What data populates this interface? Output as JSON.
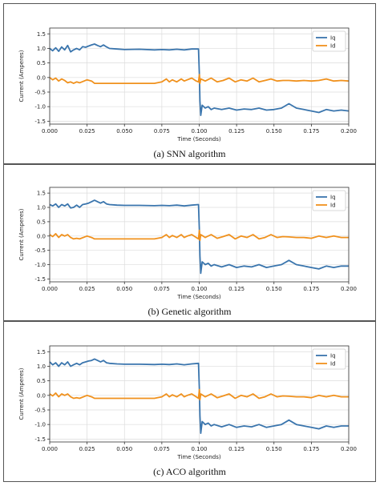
{
  "chart_data": [
    {
      "type": "line",
      "caption": "(a) SNN algorithm",
      "xlabel": "Time (Seconds)",
      "ylabel": "Current (Amperes)",
      "xlim": [
        0,
        0.2
      ],
      "ylim": [
        -1.6,
        1.7
      ],
      "xticks": [
        "0.000",
        "0.025",
        "0.050",
        "0.075",
        "0.100",
        "0.125",
        "0.150",
        "0.175",
        "0.200"
      ],
      "yticks": [
        "1.5",
        "1.0",
        "0.5",
        "0.0",
        "-0.5",
        "-1.0",
        "-1.5"
      ],
      "grid": true,
      "legend": "top-right",
      "series": [
        {
          "name": "Iq",
          "color": "#3a75ad",
          "x": [
            0,
            0.002,
            0.004,
            0.006,
            0.008,
            0.01,
            0.012,
            0.014,
            0.016,
            0.018,
            0.02,
            0.022,
            0.024,
            0.026,
            0.028,
            0.03,
            0.032,
            0.034,
            0.036,
            0.038,
            0.04,
            0.045,
            0.05,
            0.06,
            0.07,
            0.075,
            0.08,
            0.085,
            0.09,
            0.095,
            0.0995,
            0.1001,
            0.1005,
            0.101,
            0.102,
            0.104,
            0.106,
            0.108,
            0.11,
            0.115,
            0.12,
            0.125,
            0.13,
            0.135,
            0.14,
            0.145,
            0.15,
            0.155,
            0.16,
            0.165,
            0.17,
            0.175,
            0.18,
            0.185,
            0.19,
            0.195,
            0.2
          ],
          "y": [
            1.0,
            0.92,
            1.02,
            0.9,
            1.05,
            0.95,
            1.1,
            0.88,
            0.95,
            1.0,
            0.95,
            1.06,
            1.04,
            1.08,
            1.12,
            1.15,
            1.1,
            1.06,
            1.12,
            1.05,
            1.0,
            0.98,
            0.96,
            0.97,
            0.95,
            0.96,
            0.95,
            0.97,
            0.95,
            0.98,
            0.98,
            0.1,
            -0.8,
            -1.3,
            -0.95,
            -1.05,
            -1.0,
            -1.1,
            -1.05,
            -1.1,
            -1.05,
            -1.12,
            -1.08,
            -1.1,
            -1.05,
            -1.12,
            -1.1,
            -1.05,
            -0.9,
            -1.05,
            -1.1,
            -1.15,
            -1.2,
            -1.1,
            -1.15,
            -1.12,
            -1.15
          ]
        },
        {
          "name": "Id",
          "color": "#f0911d",
          "x": [
            0,
            0.002,
            0.004,
            0.006,
            0.008,
            0.01,
            0.012,
            0.014,
            0.016,
            0.018,
            0.02,
            0.025,
            0.028,
            0.03,
            0.035,
            0.04,
            0.05,
            0.06,
            0.07,
            0.075,
            0.078,
            0.08,
            0.082,
            0.085,
            0.088,
            0.09,
            0.092,
            0.095,
            0.098,
            0.0995,
            0.1001,
            0.1005,
            0.101,
            0.104,
            0.108,
            0.112,
            0.116,
            0.12,
            0.124,
            0.128,
            0.132,
            0.136,
            0.14,
            0.144,
            0.148,
            0.152,
            0.156,
            0.16,
            0.165,
            0.17,
            0.175,
            0.18,
            0.185,
            0.19,
            0.195,
            0.2
          ],
          "y": [
            0.0,
            -0.08,
            -0.02,
            -0.12,
            -0.05,
            -0.1,
            -0.18,
            -0.15,
            -0.2,
            -0.15,
            -0.18,
            -0.08,
            -0.12,
            -0.2,
            -0.2,
            -0.2,
            -0.2,
            -0.2,
            -0.2,
            -0.15,
            -0.05,
            -0.15,
            -0.08,
            -0.15,
            -0.05,
            -0.12,
            -0.08,
            -0.02,
            -0.12,
            -0.15,
            0.1,
            -0.2,
            -0.05,
            -0.12,
            -0.02,
            -0.15,
            -0.1,
            -0.02,
            -0.15,
            -0.08,
            -0.12,
            -0.02,
            -0.15,
            -0.1,
            -0.05,
            -0.12,
            -0.1,
            -0.1,
            -0.12,
            -0.1,
            -0.12,
            -0.1,
            -0.05,
            -0.12,
            -0.1,
            -0.12
          ]
        }
      ]
    },
    {
      "type": "line",
      "caption": "(b) Genetic algorithm",
      "xlabel": "Time (Seconds)",
      "ylabel": "Current (Amperes)",
      "xlim": [
        0,
        0.2
      ],
      "ylim": [
        -1.6,
        1.7
      ],
      "xticks": [
        "0.000",
        "0.025",
        "0.050",
        "0.075",
        "0.100",
        "0.125",
        "0.150",
        "0.175",
        "0.200"
      ],
      "yticks": [
        "1.5",
        "1.0",
        "0.5",
        "0.0",
        "-0.5",
        "-1.0",
        "-1.5"
      ],
      "grid": true,
      "legend": "top-right",
      "series": [
        {
          "name": "Iq",
          "color": "#3a75ad",
          "x": [
            0,
            0.002,
            0.004,
            0.006,
            0.008,
            0.01,
            0.012,
            0.014,
            0.016,
            0.018,
            0.02,
            0.022,
            0.024,
            0.026,
            0.028,
            0.03,
            0.032,
            0.034,
            0.036,
            0.038,
            0.04,
            0.045,
            0.05,
            0.06,
            0.07,
            0.075,
            0.08,
            0.085,
            0.09,
            0.095,
            0.0995,
            0.1001,
            0.1005,
            0.101,
            0.102,
            0.104,
            0.106,
            0.108,
            0.11,
            0.115,
            0.12,
            0.125,
            0.13,
            0.135,
            0.14,
            0.145,
            0.15,
            0.155,
            0.16,
            0.165,
            0.17,
            0.175,
            0.18,
            0.185,
            0.19,
            0.195,
            0.2
          ],
          "y": [
            1.1,
            1.05,
            1.12,
            1.0,
            1.1,
            1.05,
            1.12,
            0.98,
            1.0,
            1.08,
            1.0,
            1.1,
            1.12,
            1.15,
            1.2,
            1.25,
            1.2,
            1.15,
            1.2,
            1.12,
            1.1,
            1.08,
            1.07,
            1.07,
            1.06,
            1.07,
            1.06,
            1.08,
            1.05,
            1.08,
            1.1,
            0.2,
            -0.7,
            -1.3,
            -0.9,
            -1.0,
            -0.95,
            -1.05,
            -1.0,
            -1.08,
            -1.0,
            -1.1,
            -1.05,
            -1.08,
            -1.0,
            -1.1,
            -1.05,
            -1.0,
            -0.85,
            -1.0,
            -1.05,
            -1.1,
            -1.15,
            -1.05,
            -1.1,
            -1.05,
            -1.05
          ]
        },
        {
          "name": "Id",
          "color": "#f0911d",
          "x": [
            0,
            0.002,
            0.004,
            0.006,
            0.008,
            0.01,
            0.012,
            0.014,
            0.016,
            0.018,
            0.02,
            0.025,
            0.028,
            0.03,
            0.035,
            0.04,
            0.05,
            0.06,
            0.07,
            0.075,
            0.078,
            0.08,
            0.082,
            0.085,
            0.088,
            0.09,
            0.092,
            0.095,
            0.098,
            0.0995,
            0.1001,
            0.1005,
            0.101,
            0.104,
            0.108,
            0.112,
            0.116,
            0.12,
            0.124,
            0.128,
            0.132,
            0.136,
            0.14,
            0.144,
            0.148,
            0.152,
            0.156,
            0.16,
            0.165,
            0.17,
            0.175,
            0.18,
            0.185,
            0.19,
            0.195,
            0.2
          ],
          "y": [
            0.05,
            -0.02,
            0.08,
            -0.05,
            0.05,
            0.0,
            0.05,
            -0.05,
            -0.1,
            -0.08,
            -0.1,
            0.0,
            -0.05,
            -0.1,
            -0.1,
            -0.1,
            -0.1,
            -0.1,
            -0.1,
            -0.05,
            0.05,
            -0.05,
            0.02,
            -0.05,
            0.05,
            -0.05,
            0.0,
            0.05,
            -0.05,
            -0.1,
            0.2,
            -0.15,
            0.05,
            -0.05,
            0.05,
            -0.08,
            -0.02,
            0.05,
            -0.1,
            0.0,
            -0.05,
            0.05,
            -0.1,
            -0.05,
            0.05,
            -0.05,
            -0.02,
            -0.03,
            -0.05,
            -0.05,
            -0.08,
            0.0,
            -0.05,
            0.0,
            -0.05,
            -0.05
          ]
        }
      ]
    },
    {
      "type": "line",
      "caption": "(c) ACO algorithm",
      "xlabel": "Time (Seconds)",
      "ylabel": "Current (Amperes)",
      "xlim": [
        0,
        0.2
      ],
      "ylim": [
        -1.6,
        1.7
      ],
      "xticks": [
        "0.000",
        "0.025",
        "0.050",
        "0.075",
        "0.100",
        "0.125",
        "0.150",
        "0.175",
        "0.200"
      ],
      "yticks": [
        "1.5",
        "1.0",
        "0.5",
        "0.0",
        "-0.5",
        "-1.0",
        "-1.5"
      ],
      "grid": true,
      "legend": "top-right",
      "series": [
        {
          "name": "Iq",
          "color": "#3a75ad",
          "x": [
            0,
            0.002,
            0.004,
            0.006,
            0.008,
            0.01,
            0.012,
            0.014,
            0.016,
            0.018,
            0.02,
            0.022,
            0.024,
            0.026,
            0.028,
            0.03,
            0.032,
            0.034,
            0.036,
            0.038,
            0.04,
            0.045,
            0.05,
            0.06,
            0.07,
            0.075,
            0.08,
            0.085,
            0.09,
            0.095,
            0.0995,
            0.1001,
            0.1005,
            0.101,
            0.102,
            0.104,
            0.106,
            0.108,
            0.11,
            0.115,
            0.12,
            0.125,
            0.13,
            0.135,
            0.14,
            0.145,
            0.15,
            0.155,
            0.16,
            0.165,
            0.17,
            0.175,
            0.18,
            0.185,
            0.19,
            0.195,
            0.2
          ],
          "y": [
            1.15,
            1.05,
            1.12,
            1.0,
            1.12,
            1.05,
            1.15,
            1.0,
            1.05,
            1.1,
            1.05,
            1.12,
            1.15,
            1.18,
            1.2,
            1.25,
            1.2,
            1.15,
            1.2,
            1.12,
            1.1,
            1.08,
            1.07,
            1.07,
            1.06,
            1.07,
            1.06,
            1.08,
            1.05,
            1.08,
            1.1,
            0.2,
            -0.7,
            -1.3,
            -0.9,
            -1.0,
            -0.95,
            -1.05,
            -1.0,
            -1.08,
            -1.0,
            -1.1,
            -1.05,
            -1.08,
            -1.0,
            -1.1,
            -1.05,
            -1.0,
            -0.85,
            -1.0,
            -1.05,
            -1.1,
            -1.15,
            -1.05,
            -1.1,
            -1.05,
            -1.05
          ]
        },
        {
          "name": "Id",
          "color": "#f0911d",
          "x": [
            0,
            0.002,
            0.004,
            0.006,
            0.008,
            0.01,
            0.012,
            0.014,
            0.016,
            0.018,
            0.02,
            0.025,
            0.028,
            0.03,
            0.035,
            0.04,
            0.05,
            0.06,
            0.07,
            0.075,
            0.078,
            0.08,
            0.082,
            0.085,
            0.088,
            0.09,
            0.092,
            0.095,
            0.098,
            0.0995,
            0.1001,
            0.1005,
            0.101,
            0.104,
            0.108,
            0.112,
            0.116,
            0.12,
            0.124,
            0.128,
            0.132,
            0.136,
            0.14,
            0.144,
            0.148,
            0.152,
            0.156,
            0.16,
            0.165,
            0.17,
            0.175,
            0.18,
            0.185,
            0.19,
            0.195,
            0.2
          ],
          "y": [
            0.05,
            -0.02,
            0.08,
            -0.05,
            0.05,
            0.0,
            0.05,
            -0.05,
            -0.1,
            -0.08,
            -0.1,
            0.0,
            -0.05,
            -0.1,
            -0.1,
            -0.1,
            -0.1,
            -0.1,
            -0.1,
            -0.05,
            0.05,
            -0.05,
            0.02,
            -0.05,
            0.05,
            -0.05,
            0.0,
            0.05,
            -0.05,
            -0.1,
            0.2,
            -0.15,
            0.05,
            -0.05,
            0.05,
            -0.08,
            -0.02,
            0.05,
            -0.1,
            0.0,
            -0.05,
            0.05,
            -0.1,
            -0.05,
            0.05,
            -0.05,
            -0.02,
            -0.03,
            -0.05,
            -0.05,
            -0.08,
            0.0,
            -0.05,
            0.0,
            -0.05,
            -0.05
          ]
        }
      ]
    }
  ]
}
